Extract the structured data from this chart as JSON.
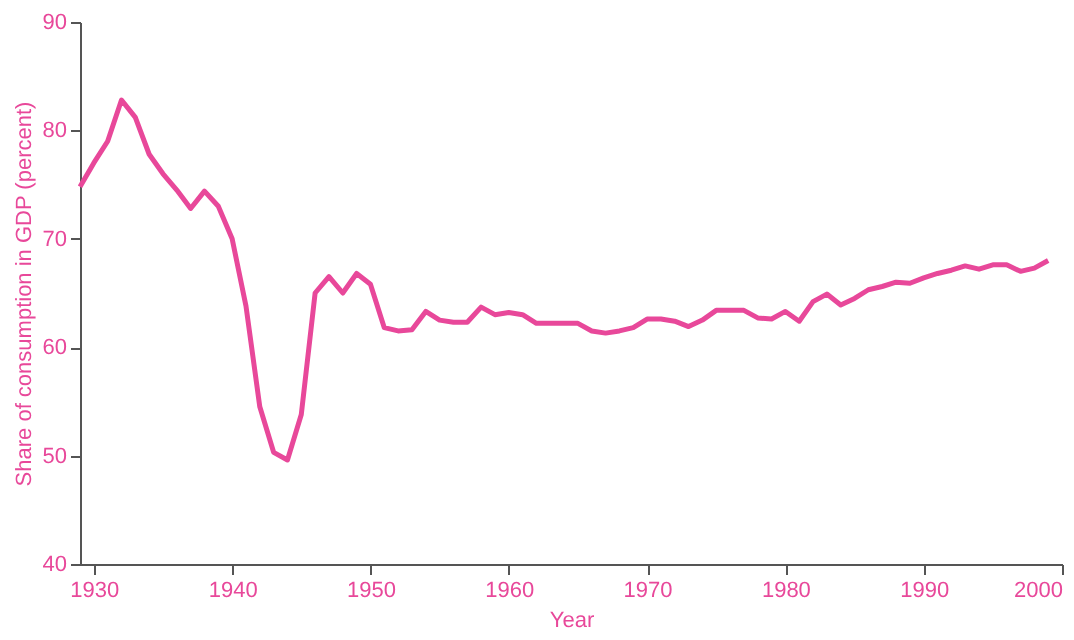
{
  "chart_data": {
    "type": "line",
    "xlabel": "Year",
    "ylabel": "Share of consumption in GDP (percent)",
    "x": [
      1929,
      1930,
      1931,
      1932,
      1933,
      1934,
      1935,
      1936,
      1937,
      1938,
      1939,
      1940,
      1941,
      1942,
      1943,
      1944,
      1945,
      1946,
      1947,
      1948,
      1949,
      1950,
      1951,
      1952,
      1953,
      1954,
      1955,
      1956,
      1957,
      1958,
      1959,
      1960,
      1961,
      1962,
      1963,
      1964,
      1965,
      1966,
      1967,
      1968,
      1969,
      1970,
      1971,
      1972,
      1973,
      1974,
      1975,
      1976,
      1977,
      1978,
      1979,
      1980,
      1981,
      1982,
      1983,
      1984,
      1985,
      1986,
      1987,
      1988,
      1989,
      1990,
      1991,
      1992,
      1993,
      1994,
      1995,
      1996,
      1997,
      1998,
      1999
    ],
    "series": [
      {
        "color": "#e8489a",
        "values": [
          74.8,
          77,
          79,
          82.8,
          81.2,
          77.8,
          76,
          74.5,
          72.8,
          74.4,
          73,
          70,
          63.8,
          54.5,
          50.3,
          49.6,
          53.8,
          65,
          66.5,
          65,
          66.8,
          65.8,
          61.8,
          61.5,
          61.6,
          63.3,
          62.5,
          62.3,
          62.3,
          63.7,
          63,
          63.2,
          63,
          62.2,
          62.2,
          62.2,
          62.2,
          61.5,
          61.3,
          61.5,
          61.8,
          62.6,
          62.6,
          62.4,
          61.9,
          62.5,
          63.4,
          63.4,
          63.4,
          62.7,
          62.6,
          63.3,
          62.4,
          64.2,
          64.9,
          63.9,
          64.5,
          65.3,
          65.6,
          66,
          65.9,
          66.4,
          66.8,
          67.1,
          67.5,
          67.2,
          67.6,
          67.6,
          67,
          67.3,
          68
        ]
      }
    ],
    "xlim": [
      1929,
      2000
    ],
    "ylim": [
      40,
      90
    ],
    "xticks": [
      1930,
      1940,
      1950,
      1960,
      1970,
      1980,
      1990,
      2000
    ],
    "yticks": [
      40,
      50,
      60,
      70,
      80,
      90
    ],
    "grid": false,
    "marker": "none",
    "line_style": "solid"
  }
}
